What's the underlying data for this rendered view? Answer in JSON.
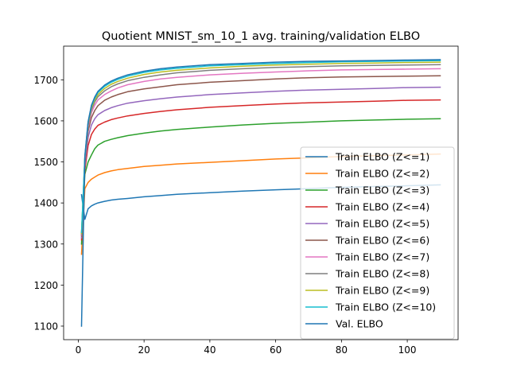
{
  "chart_data": {
    "type": "line",
    "title": "Quotient MNIST_sm_10_1 avg. training/validation ELBO",
    "xlabel": "",
    "ylabel": "",
    "xlim": [
      -4.45,
      115.45
    ],
    "ylim": [
      1067,
      1782
    ],
    "xticks": [
      0,
      20,
      40,
      60,
      80,
      100
    ],
    "yticks": [
      1100,
      1200,
      1300,
      1400,
      1500,
      1600,
      1700
    ],
    "grid": false,
    "legend_position": "lower-right",
    "x": [
      1,
      2,
      3,
      4,
      5,
      6,
      8,
      10,
      12,
      15,
      20,
      25,
      30,
      40,
      50,
      60,
      70,
      80,
      90,
      100,
      110
    ],
    "series": [
      {
        "name": "Train ELBO (Z<=1)",
        "color": "#1f77b4",
        "values": [
          1420,
          1360,
          1386,
          1393,
          1397,
          1400,
          1404,
          1407,
          1409,
          1411,
          1415,
          1418,
          1421,
          1425,
          1429,
          1432,
          1435,
          1438,
          1440,
          1442,
          1444
        ]
      },
      {
        "name": "Train ELBO (Z<=2)",
        "color": "#ff7f0e",
        "values": [
          1275,
          1435,
          1450,
          1458,
          1463,
          1468,
          1474,
          1478,
          1481,
          1484,
          1489,
          1492,
          1495,
          1499,
          1503,
          1507,
          1510,
          1513,
          1515,
          1517,
          1519
        ]
      },
      {
        "name": "Train ELBO (Z<=3)",
        "color": "#2ca02c",
        "values": [
          1300,
          1470,
          1500,
          1517,
          1532,
          1541,
          1550,
          1555,
          1559,
          1564,
          1570,
          1575,
          1579,
          1585,
          1590,
          1594,
          1597,
          1600,
          1602,
          1604,
          1605
        ]
      },
      {
        "name": "Train ELBO (Z<=4)",
        "color": "#d62728",
        "values": [
          1310,
          1480,
          1540,
          1567,
          1580,
          1589,
          1597,
          1603,
          1607,
          1612,
          1618,
          1623,
          1627,
          1633,
          1637,
          1641,
          1644,
          1646,
          1648,
          1650,
          1651
        ]
      },
      {
        "name": "Train ELBO (Z<=5)",
        "color": "#9467bd",
        "values": [
          1315,
          1490,
          1560,
          1590,
          1605,
          1615,
          1625,
          1632,
          1637,
          1643,
          1649,
          1654,
          1658,
          1664,
          1668,
          1672,
          1675,
          1677,
          1679,
          1681,
          1682
        ]
      },
      {
        "name": "Train ELBO (Z<=6)",
        "color": "#8c564b",
        "values": [
          1320,
          1500,
          1575,
          1608,
          1625,
          1637,
          1650,
          1658,
          1664,
          1671,
          1678,
          1683,
          1688,
          1694,
          1698,
          1702,
          1705,
          1707,
          1708,
          1709,
          1710
        ]
      },
      {
        "name": "Train ELBO (Z<=7)",
        "color": "#e377c2",
        "values": [
          1322,
          1505,
          1585,
          1620,
          1638,
          1651,
          1664,
          1673,
          1680,
          1688,
          1696,
          1702,
          1706,
          1712,
          1716,
          1719,
          1722,
          1724,
          1725,
          1726,
          1727
        ]
      },
      {
        "name": "Train ELBO (Z<=8)",
        "color": "#7f7f7f",
        "values": [
          1324,
          1508,
          1590,
          1627,
          1646,
          1659,
          1673,
          1683,
          1690,
          1698,
          1706,
          1712,
          1717,
          1723,
          1727,
          1730,
          1732,
          1734,
          1735,
          1736,
          1737
        ]
      },
      {
        "name": "Train ELBO (Z<=9)",
        "color": "#bcbd22",
        "values": [
          1326,
          1510,
          1594,
          1632,
          1651,
          1664,
          1679,
          1689,
          1696,
          1704,
          1713,
          1719,
          1723,
          1729,
          1733,
          1736,
          1738,
          1740,
          1741,
          1742,
          1743
        ]
      },
      {
        "name": "Train ELBO (Z<=10)",
        "color": "#17becf",
        "values": [
          1328,
          1512,
          1597,
          1636,
          1655,
          1669,
          1684,
          1694,
          1701,
          1709,
          1718,
          1724,
          1728,
          1734,
          1737,
          1740,
          1742,
          1744,
          1745,
          1746,
          1747
        ]
      },
      {
        "name": "Val. ELBO",
        "color": "#1f77b4",
        "values": [
          1100,
          1515,
          1598,
          1638,
          1658,
          1672,
          1687,
          1697,
          1704,
          1712,
          1721,
          1727,
          1731,
          1737,
          1740,
          1743,
          1745,
          1746,
          1747,
          1748,
          1749
        ]
      }
    ]
  }
}
